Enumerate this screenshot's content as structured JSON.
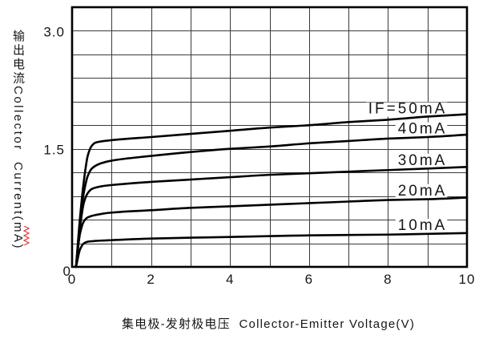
{
  "chart_data": {
    "type": "line",
    "xlabel": "集电极-发射极电压  Collector-Emitter Voltage(V)",
    "ylabel": "输出电流Collector  Current(mA)",
    "xlim": [
      0,
      10
    ],
    "ylim": [
      0,
      3.3
    ],
    "x_ticks": {
      "values": [
        0,
        2,
        4,
        6,
        8,
        10
      ],
      "labels": [
        "0",
        "2",
        "4",
        "6",
        "8",
        "10"
      ]
    },
    "y_ticks": {
      "values": [
        0,
        1.5,
        3.0
      ],
      "labels": [
        "0",
        "1.5",
        "3.0"
      ]
    },
    "grid": {
      "show": true,
      "x_step": 1,
      "y_step": 0.3
    },
    "series": [
      {
        "name": "IF=50mA",
        "points": [
          [
            0.1,
            0
          ],
          [
            0.2,
            0.62
          ],
          [
            0.3,
            1.1
          ],
          [
            0.4,
            1.42
          ],
          [
            0.5,
            1.54
          ],
          [
            0.6,
            1.58
          ],
          [
            1,
            1.61
          ],
          [
            2,
            1.65
          ],
          [
            3,
            1.69
          ],
          [
            4,
            1.73
          ],
          [
            5,
            1.77
          ],
          [
            6,
            1.8
          ],
          [
            7,
            1.84
          ],
          [
            8,
            1.87
          ],
          [
            9,
            1.91
          ],
          [
            10,
            1.94
          ]
        ]
      },
      {
        "name": "40mA",
        "points": [
          [
            0.1,
            0
          ],
          [
            0.2,
            0.58
          ],
          [
            0.3,
            0.95
          ],
          [
            0.4,
            1.16
          ],
          [
            0.5,
            1.25
          ],
          [
            0.7,
            1.31
          ],
          [
            1,
            1.35
          ],
          [
            2,
            1.41
          ],
          [
            3,
            1.46
          ],
          [
            4,
            1.5
          ],
          [
            5,
            1.53
          ],
          [
            6,
            1.57
          ],
          [
            7,
            1.6
          ],
          [
            8,
            1.63
          ],
          [
            9,
            1.65
          ],
          [
            10,
            1.68
          ]
        ]
      },
      {
        "name": "30mA",
        "points": [
          [
            0.1,
            0
          ],
          [
            0.2,
            0.5
          ],
          [
            0.3,
            0.82
          ],
          [
            0.4,
            0.94
          ],
          [
            0.5,
            0.99
          ],
          [
            0.7,
            1.02
          ],
          [
            1,
            1.04
          ],
          [
            2,
            1.08
          ],
          [
            3,
            1.11
          ],
          [
            4,
            1.14
          ],
          [
            5,
            1.17
          ],
          [
            6,
            1.19
          ],
          [
            7,
            1.21
          ],
          [
            8,
            1.23
          ],
          [
            9,
            1.25
          ],
          [
            10,
            1.27
          ]
        ]
      },
      {
        "name": "20mA",
        "points": [
          [
            0.1,
            0
          ],
          [
            0.2,
            0.42
          ],
          [
            0.3,
            0.58
          ],
          [
            0.4,
            0.63
          ],
          [
            0.6,
            0.66
          ],
          [
            1,
            0.69
          ],
          [
            2,
            0.72
          ],
          [
            3,
            0.75
          ],
          [
            4,
            0.77
          ],
          [
            5,
            0.79
          ],
          [
            6,
            0.81
          ],
          [
            7,
            0.83
          ],
          [
            8,
            0.85
          ],
          [
            9,
            0.86
          ],
          [
            10,
            0.88
          ]
        ]
      },
      {
        "name": "10mA",
        "points": [
          [
            0.1,
            0
          ],
          [
            0.2,
            0.22
          ],
          [
            0.3,
            0.3
          ],
          [
            0.4,
            0.32
          ],
          [
            0.6,
            0.33
          ],
          [
            1,
            0.34
          ],
          [
            2,
            0.36
          ],
          [
            4,
            0.38
          ],
          [
            6,
            0.4
          ],
          [
            8,
            0.41
          ],
          [
            10,
            0.43
          ]
        ]
      }
    ]
  },
  "colors": {
    "background": "#ffffff",
    "line": "#000000",
    "grid": "#3a3a3a",
    "frame": "#000000",
    "text": "#161616",
    "spellcheck_underline": "#e53935"
  }
}
